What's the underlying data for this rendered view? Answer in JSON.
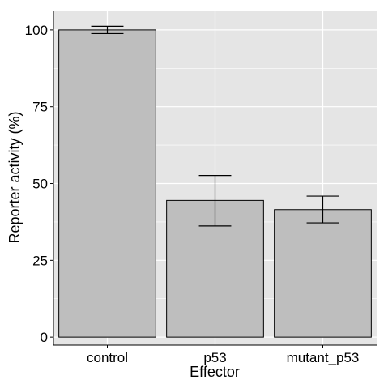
{
  "chart_data": {
    "type": "bar",
    "categories": [
      "control",
      "p53",
      "mutant_p53"
    ],
    "values": [
      100,
      44.5,
      41.5
    ],
    "error_low": [
      98.8,
      36.2,
      37.2
    ],
    "error_high": [
      101.2,
      52.6,
      45.9
    ],
    "xlabel": "Effector",
    "ylabel": "Reporter activity (%)",
    "ylim": [
      -2.6,
      106.3
    ],
    "yticks": [
      0,
      25,
      50,
      75,
      100
    ],
    "ytick_labels": [
      "0",
      "25",
      "50",
      "75",
      "100"
    ],
    "grid": true,
    "colors": {
      "panel_background": "#e5e5e5",
      "grid": "#ffffff",
      "bar_fill": "#bebebe",
      "bar_stroke": "#000000"
    }
  }
}
